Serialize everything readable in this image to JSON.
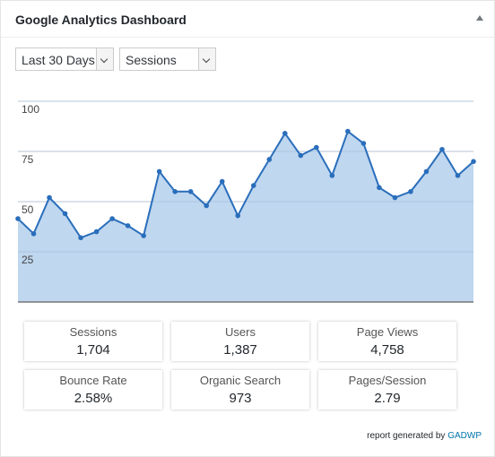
{
  "header": {
    "title": "Google Analytics Dashboard"
  },
  "controls": {
    "period": "Last 30 Days",
    "metric": "Sessions"
  },
  "chart_data": {
    "type": "area",
    "categories": [
      null,
      null,
      null,
      null,
      null,
      null,
      null,
      null,
      null,
      null,
      null,
      null,
      null,
      null,
      null,
      null,
      null,
      null,
      null,
      null,
      null,
      null,
      null,
      null,
      null,
      null,
      null,
      null,
      null,
      null
    ],
    "values": [
      41.5,
      34,
      52,
      44,
      32,
      35,
      41.5,
      38,
      33,
      65,
      55,
      55,
      48,
      60,
      43,
      58,
      71,
      84,
      73,
      77,
      63,
      85,
      79,
      57,
      52,
      55,
      65,
      76,
      63,
      70
    ],
    "color": "#2a6ebb",
    "fill": "#bcd5ee",
    "ylim": [
      0,
      100
    ],
    "yticks": [
      25,
      50,
      75,
      100
    ],
    "grid": true
  },
  "stats": [
    {
      "label": "Sessions",
      "value": "1,704"
    },
    {
      "label": "Users",
      "value": "1,387"
    },
    {
      "label": "Page Views",
      "value": "4,758"
    },
    {
      "label": "Bounce Rate",
      "value": "2.58%"
    },
    {
      "label": "Organic Search",
      "value": "973"
    },
    {
      "label": "Pages/Session",
      "value": "2.79"
    }
  ],
  "footer": {
    "text": "report generated by",
    "link": "GADWP"
  }
}
